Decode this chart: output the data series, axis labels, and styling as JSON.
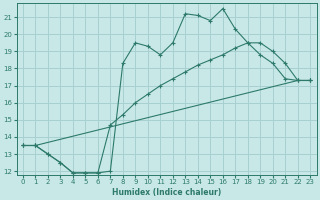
{
  "bg_color": "#c8e8e8",
  "grid_color": "#a8d0d0",
  "line_color": "#2d7a6a",
  "xlabel": "Humidex (Indice chaleur)",
  "xlim": [
    -0.5,
    23.5
  ],
  "ylim": [
    11.8,
    21.8
  ],
  "yticks": [
    12,
    13,
    14,
    15,
    16,
    17,
    18,
    19,
    20,
    21
  ],
  "xticks": [
    0,
    1,
    2,
    3,
    4,
    5,
    6,
    7,
    8,
    9,
    10,
    11,
    12,
    13,
    14,
    15,
    16,
    17,
    18,
    19,
    20,
    21,
    22,
    23
  ],
  "line1_x": [
    0,
    1,
    2,
    3,
    4,
    5,
    6,
    7,
    8,
    9,
    10,
    11,
    12,
    13,
    14,
    15,
    16,
    17,
    18,
    19,
    20,
    21,
    22,
    23
  ],
  "line1_y": [
    13.5,
    13.5,
    13.0,
    12.5,
    11.9,
    11.9,
    11.9,
    12.0,
    18.3,
    19.5,
    19.3,
    18.8,
    19.5,
    21.2,
    21.1,
    20.8,
    21.5,
    20.3,
    19.5,
    18.8,
    18.3,
    17.4,
    17.3,
    17.3
  ],
  "line2_x": [
    0,
    1,
    2,
    3,
    4,
    5,
    6,
    7,
    8,
    9,
    10,
    11,
    12,
    13,
    14,
    15,
    16,
    17,
    18,
    19,
    20,
    21,
    22,
    23
  ],
  "line2_y": [
    13.5,
    13.5,
    13.0,
    12.5,
    11.9,
    11.9,
    11.9,
    14.7,
    15.3,
    16.0,
    16.5,
    17.0,
    17.4,
    17.8,
    18.2,
    18.5,
    18.8,
    19.2,
    19.5,
    19.5,
    19.0,
    18.3,
    17.3,
    17.3
  ],
  "line3_x": [
    0,
    1,
    22,
    23
  ],
  "line3_y": [
    13.5,
    13.5,
    17.3,
    17.3
  ]
}
